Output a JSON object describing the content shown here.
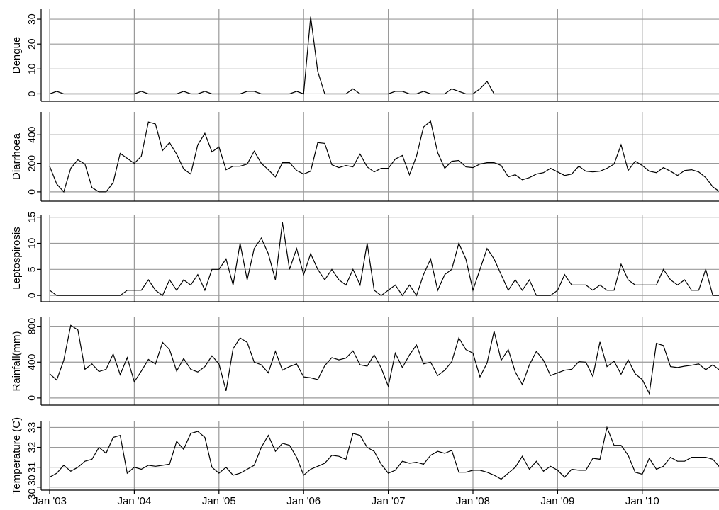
{
  "chart_data": {
    "type": "line",
    "x_start": "Jan '03",
    "x_month_count": 96,
    "xtick_labels": [
      "Jan '03",
      "Jan '04",
      "Jan '05",
      "Jan '06",
      "Jan '07",
      "Jan '08",
      "Jan '09",
      "Jan '10"
    ],
    "grid": true,
    "panels": [
      {
        "name": "dengue",
        "ylabel": "Dengue",
        "ylim": [
          -3,
          34
        ],
        "yticks": [
          0,
          10,
          20,
          30
        ],
        "values": [
          0,
          1,
          0,
          0,
          0,
          0,
          0,
          0,
          0,
          0,
          0,
          0,
          0,
          1,
          0,
          0,
          0,
          0,
          0,
          1,
          0,
          0,
          1,
          0,
          0,
          0,
          0,
          0,
          1,
          1,
          0,
          0,
          0,
          0,
          0,
          1,
          0,
          31,
          9,
          0,
          0,
          0,
          0,
          2,
          0,
          0,
          0,
          0,
          0,
          1,
          1,
          0,
          0,
          1,
          0,
          0,
          0,
          2,
          1,
          0,
          0,
          2,
          5,
          0,
          0,
          0,
          0,
          0,
          0,
          0,
          0,
          0,
          0,
          0,
          0,
          0,
          0,
          0,
          0,
          0,
          0,
          0,
          0,
          0,
          0,
          0,
          0,
          0,
          0,
          0,
          0,
          0,
          0,
          0,
          0,
          0
        ]
      },
      {
        "name": "diarrhoea",
        "ylabel": "Diarrhoea",
        "ylim": [
          -65,
          560
        ],
        "yticks": [
          0,
          200,
          400
        ],
        "values": [
          180,
          55,
          0,
          165,
          225,
          195,
          30,
          0,
          0,
          65,
          270,
          235,
          200,
          250,
          490,
          475,
          290,
          345,
          265,
          160,
          125,
          330,
          410,
          280,
          315,
          155,
          180,
          180,
          195,
          285,
          200,
          155,
          105,
          205,
          205,
          150,
          125,
          145,
          345,
          340,
          190,
          170,
          185,
          175,
          265,
          175,
          140,
          165,
          165,
          230,
          255,
          120,
          250,
          455,
          495,
          275,
          165,
          215,
          220,
          175,
          170,
          195,
          205,
          205,
          185,
          105,
          120,
          85,
          100,
          125,
          135,
          165,
          140,
          115,
          125,
          180,
          145,
          140,
          145,
          165,
          195,
          330,
          150,
          215,
          185,
          145,
          135,
          170,
          145,
          115,
          150,
          155,
          140,
          100,
          35,
          0
        ]
      },
      {
        "name": "leptospirosis",
        "ylabel": "Leptospirosis",
        "ylim": [
          -1.2,
          15.5
        ],
        "yticks": [
          0,
          5,
          10,
          15
        ],
        "values": [
          1,
          0,
          0,
          0,
          0,
          0,
          0,
          0,
          0,
          0,
          0,
          1,
          1,
          1,
          3,
          1,
          0,
          3,
          1,
          3,
          2,
          4,
          1,
          5,
          5,
          7,
          2,
          10,
          3,
          9,
          11,
          8,
          3,
          14,
          5,
          9,
          4,
          8,
          5,
          3,
          5,
          3,
          2,
          5,
          2,
          10,
          1,
          0,
          1,
          2,
          0,
          2,
          0,
          4,
          7,
          1,
          4,
          5,
          10,
          7,
          1,
          5,
          9,
          7,
          4,
          1,
          3,
          1,
          3,
          0,
          0,
          0,
          1,
          4,
          2,
          2,
          2,
          1,
          2,
          1,
          1,
          6,
          3,
          2,
          2,
          2,
          2,
          5,
          3,
          2,
          3,
          1,
          1,
          5,
          0,
          0
        ]
      },
      {
        "name": "rainfall",
        "ylabel": "Rainfall(mm)",
        "ylim": [
          -80,
          900
        ],
        "yticks": [
          0,
          400,
          800
        ],
        "values": [
          270,
          200,
          420,
          810,
          760,
          320,
          380,
          295,
          320,
          490,
          260,
          450,
          180,
          300,
          430,
          380,
          620,
          540,
          300,
          440,
          320,
          290,
          350,
          470,
          380,
          80,
          550,
          670,
          620,
          400,
          370,
          280,
          520,
          310,
          350,
          380,
          235,
          225,
          205,
          360,
          450,
          425,
          445,
          525,
          370,
          355,
          480,
          335,
          130,
          500,
          340,
          480,
          590,
          380,
          400,
          250,
          310,
          405,
          670,
          540,
          500,
          235,
          390,
          745,
          420,
          540,
          290,
          150,
          370,
          520,
          420,
          250,
          280,
          310,
          320,
          405,
          400,
          240,
          625,
          350,
          410,
          265,
          425,
          270,
          205,
          50,
          610,
          585,
          350,
          340,
          355,
          365,
          380,
          315,
          370,
          310
        ]
      },
      {
        "name": "temperature",
        "ylabel": "Temperature (C)",
        "ylim": [
          29.85,
          33.3
        ],
        "yticks": [
          30,
          31,
          32,
          33
        ],
        "ytick_labels": [
          "30 30",
          "31",
          "32",
          "33"
        ],
        "values": [
          30.5,
          30.7,
          31.1,
          30.8,
          31.0,
          31.3,
          31.4,
          32.0,
          31.7,
          32.5,
          32.6,
          30.7,
          31.0,
          30.9,
          31.1,
          31.05,
          31.1,
          31.15,
          32.3,
          31.9,
          32.7,
          32.8,
          32.5,
          31.0,
          30.7,
          31.0,
          30.6,
          30.7,
          30.9,
          31.1,
          32.0,
          32.6,
          31.8,
          32.2,
          32.1,
          31.5,
          30.6,
          30.9,
          31.05,
          31.2,
          31.6,
          31.55,
          31.4,
          32.7,
          32.6,
          32.0,
          31.8,
          31.15,
          30.7,
          30.85,
          31.3,
          31.2,
          31.25,
          31.15,
          31.6,
          31.8,
          31.7,
          31.85,
          30.75,
          30.75,
          30.85,
          30.85,
          30.75,
          30.6,
          30.4,
          30.7,
          31.0,
          31.55,
          30.9,
          31.3,
          30.8,
          31.05,
          30.85,
          30.5,
          30.9,
          30.85,
          30.85,
          31.45,
          31.4,
          33.0,
          32.1,
          32.1,
          31.6,
          30.75,
          30.65,
          31.45,
          30.9,
          31.05,
          31.5,
          31.3,
          31.3,
          31.5,
          31.5,
          31.5,
          31.4,
          31.0
        ]
      }
    ]
  }
}
